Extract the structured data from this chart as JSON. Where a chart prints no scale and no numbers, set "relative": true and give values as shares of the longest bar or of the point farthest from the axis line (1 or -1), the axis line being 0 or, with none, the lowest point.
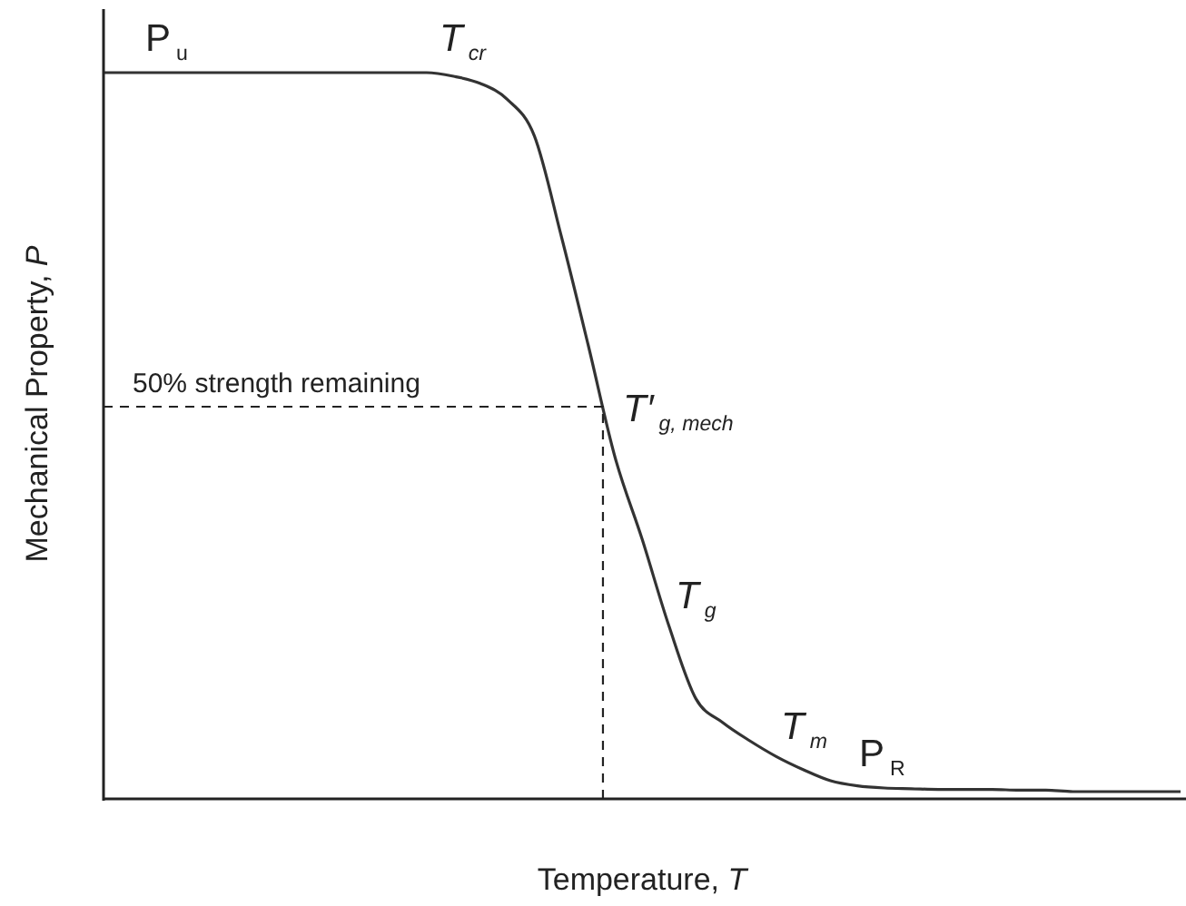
{
  "chart_data": {
    "type": "line",
    "relative": true,
    "xlabel": "Temperature, T",
    "ylabel": "Mechanical Property, P",
    "categories": [
      null,
      null,
      null,
      null,
      null,
      null,
      null,
      null,
      null,
      null,
      null,
      null,
      null,
      null,
      null,
      null,
      null,
      null,
      null,
      null,
      null,
      null,
      null,
      null,
      null,
      null,
      null,
      null,
      null,
      null,
      null,
      null,
      null,
      null,
      null,
      null,
      null,
      null,
      null,
      null,
      null
    ],
    "series": [
      {
        "color": "#333333",
        "values": [
          1,
          1,
          1,
          1,
          1,
          1,
          1,
          1,
          1,
          1,
          1,
          1,
          1,
          0.995,
          0.985,
          0.963,
          0.913,
          0.775,
          0.625,
          0.47,
          0.358,
          0.238,
          0.138,
          0.105,
          0.08,
          0.058,
          0.04,
          0.025,
          0.018,
          0.015,
          0.014,
          0.013,
          0.013,
          0.013,
          0.012,
          0.012,
          0.01,
          0.01,
          0.01,
          0.01,
          0.01
        ]
      }
    ],
    "ref_lines": [
      {
        "axis": "y",
        "value": 0.54,
        "label": "50% strength remaining",
        "line_style": "dashed"
      }
    ],
    "annotations": [
      "P$_{u}$",
      "T$_{cr}$",
      "T′$_{g, mech}$",
      "T$_{g}$",
      "T$_{m}$",
      "P$_{R}$"
    ],
    "marker": "none",
    "line_style": "solid"
  }
}
